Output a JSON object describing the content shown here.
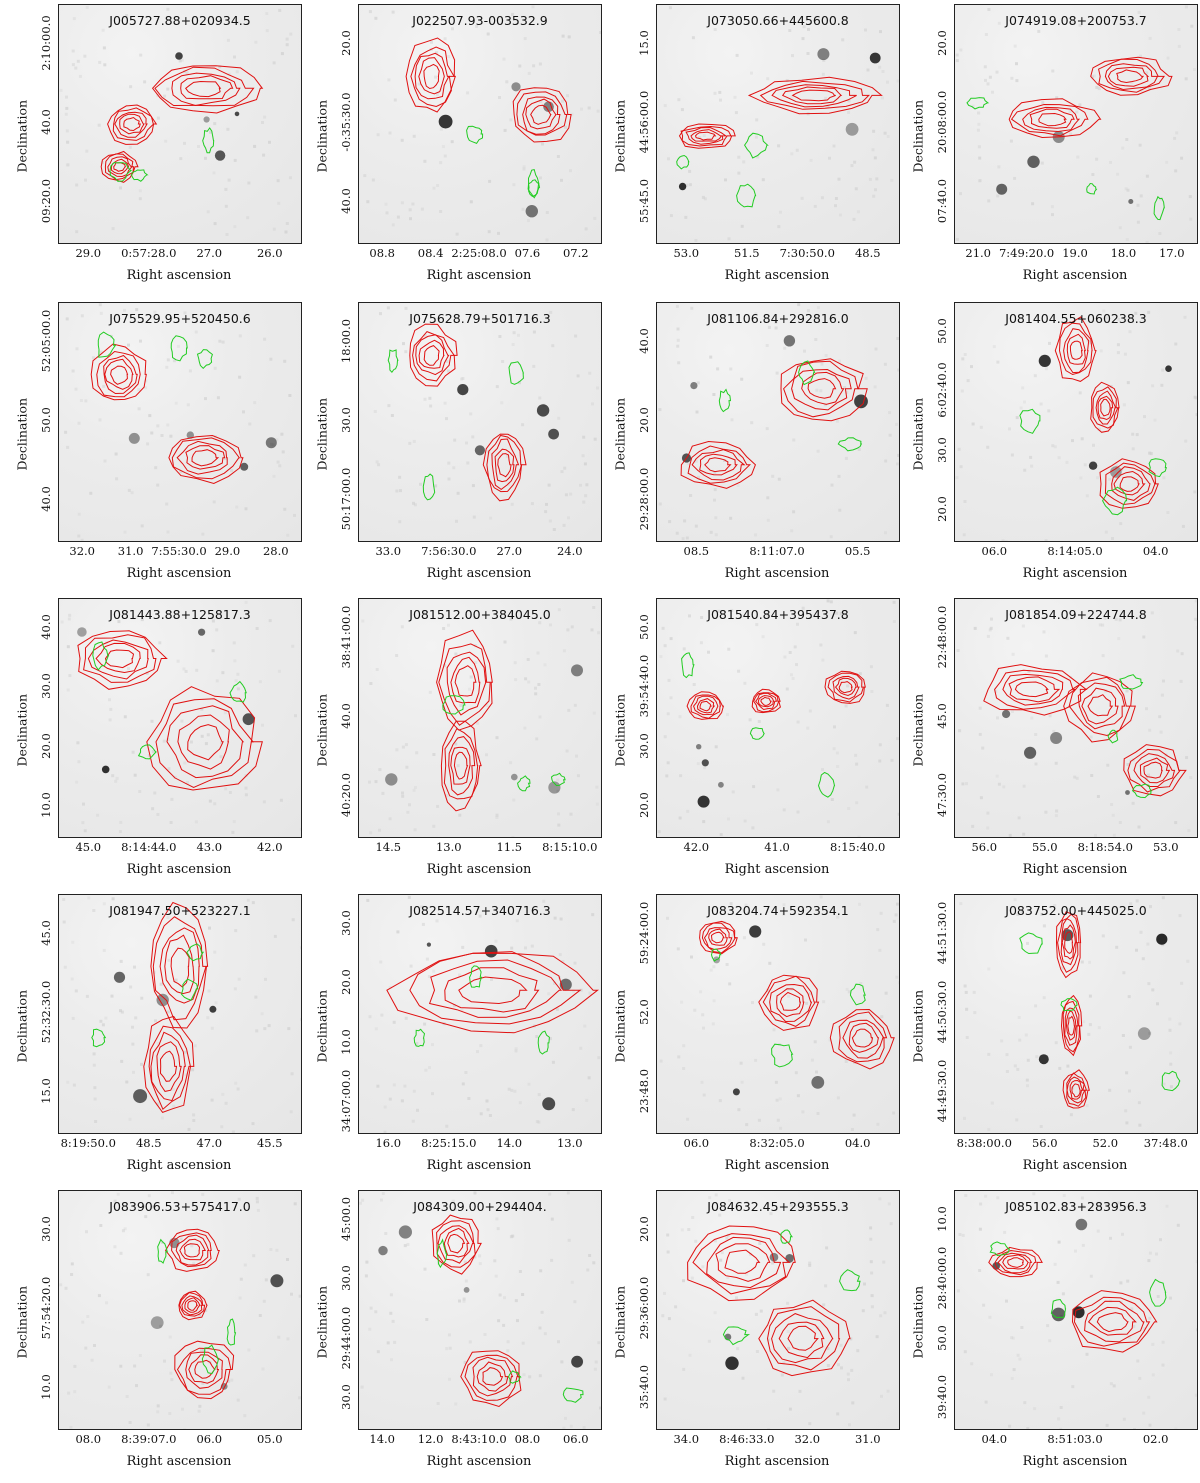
{
  "axis_labels": {
    "x": "Right ascension",
    "y": "Declination"
  },
  "colors": {
    "radio_contour": "#e01010",
    "optical_contour": "#22cc22",
    "background": "#e9e9e9",
    "source": "#111111"
  },
  "panels": [
    {
      "name": "J005727.88+020934.5",
      "xticks": [
        "29.0",
        "0:57:28.0",
        "27.0",
        "26.0"
      ],
      "yticks": [
        "2:10:00.0",
        "40.0",
        "09:20.0"
      ]
    },
    {
      "name": "J022507.93-003532.9",
      "xticks": [
        "08.8",
        "08.4",
        "2:25:08.0",
        "07.6",
        "07.2"
      ],
      "yticks": [
        "20.0",
        "-0:35:30.0",
        "40.0"
      ]
    },
    {
      "name": "J073050.66+445600.8",
      "xticks": [
        "53.0",
        "51.5",
        "7:30:50.0",
        "48.5"
      ],
      "yticks": [
        "15.0",
        "44:56:00.0",
        "55:45.0"
      ]
    },
    {
      "name": "J074919.08+200753.7",
      "xticks": [
        "21.0",
        "7:49:20.0",
        "19.0",
        "18.0",
        "17.0"
      ],
      "yticks": [
        "20.0",
        "20:08:00.0",
        "07:40.0"
      ]
    },
    {
      "name": "J075529.95+520450.6",
      "xticks": [
        "32.0",
        "31.0",
        "7:55:30.0",
        "29.0",
        "28.0"
      ],
      "yticks": [
        "52:05:00.0",
        "50.0",
        "40.0"
      ]
    },
    {
      "name": "J075628.79+501716.3",
      "xticks": [
        "33.0",
        "7:56:30.0",
        "27.0",
        "24.0"
      ],
      "yticks": [
        "18:00.0",
        "30.0",
        "50:17:00.0"
      ]
    },
    {
      "name": "J081106.84+292816.0",
      "xticks": [
        "08.5",
        "8:11:07.0",
        "05.5"
      ],
      "yticks": [
        "40.0",
        "20.0",
        "29:28:00.0"
      ]
    },
    {
      "name": "J081404.55+060238.3",
      "xticks": [
        "06.0",
        "8:14:05.0",
        "04.0"
      ],
      "yticks": [
        "50.0",
        "6:02:40.0",
        "30.0",
        "20.0"
      ]
    },
    {
      "name": "J081443.88+125817.3",
      "xticks": [
        "45.0",
        "8:14:44.0",
        "43.0",
        "42.0"
      ],
      "yticks": [
        "40.0",
        "30.0",
        "20.0",
        "10.0"
      ]
    },
    {
      "name": "J081512.00+384045.0",
      "xticks": [
        "14.5",
        "13.0",
        "11.5",
        "8:15:10.0"
      ],
      "yticks": [
        "38:41:00.0",
        "40.0",
        "40:20.0"
      ]
    },
    {
      "name": "J081540.84+395437.8",
      "xticks": [
        "42.0",
        "41.0",
        "8:15:40.0"
      ],
      "yticks": [
        "50.0",
        "39:54:40.0",
        "30.0",
        "20.0"
      ]
    },
    {
      "name": "J081854.09+224744.8",
      "xticks": [
        "56.0",
        "55.0",
        "8:18:54.0",
        "53.0"
      ],
      "yticks": [
        "22:48:00.0",
        "45.0",
        "47:30.0"
      ]
    },
    {
      "name": "J081947.50+523227.1",
      "xticks": [
        "8:19:50.0",
        "48.5",
        "47.0",
        "45.5"
      ],
      "yticks": [
        "45.0",
        "52:32:30.0",
        "15.0"
      ]
    },
    {
      "name": "J082514.57+340716.3",
      "xticks": [
        "16.0",
        "8:25:15.0",
        "14.0",
        "13.0"
      ],
      "yticks": [
        "30.0",
        "20.0",
        "10.0",
        "34:07:00.0"
      ]
    },
    {
      "name": "J083204.74+592354.1",
      "xticks": [
        "06.0",
        "8:32:05.0",
        "04.0"
      ],
      "yticks": [
        "59:24:00.0",
        "52.0",
        "23:48.0"
      ]
    },
    {
      "name": "J083752.00+445025.0",
      "xticks": [
        "8:38:00.0",
        "56.0",
        "52.0",
        "37:48.0"
      ],
      "yticks": [
        "44:51:30.0",
        "44:50:30.0",
        "44:49:30.0"
      ]
    },
    {
      "name": "J083906.53+575417.0",
      "xticks": [
        "08.0",
        "8:39:07.0",
        "06.0",
        "05.0"
      ],
      "yticks": [
        "30.0",
        "57:54:20.0",
        "10.0"
      ]
    },
    {
      "name": "J084309.00+294404.",
      "xticks": [
        "14.0",
        "12.0",
        "8:43:10.0",
        "08.0",
        "06.0"
      ],
      "yticks": [
        "45:00.0",
        "30.0",
        "29:44:00.0",
        "30.0"
      ]
    },
    {
      "name": "J084632.45+293555.3",
      "xticks": [
        "34.0",
        "8:46:33.0",
        "32.0",
        "31.0"
      ],
      "yticks": [
        "20.0",
        "29:36:00.0",
        "35:40.0"
      ]
    },
    {
      "name": "J085102.83+283956.3",
      "xticks": [
        "04.0",
        "8:51:03.0",
        "02.0"
      ],
      "yticks": [
        "10.0",
        "28:40:00.0",
        "50.0",
        "39:40.0"
      ]
    }
  ]
}
